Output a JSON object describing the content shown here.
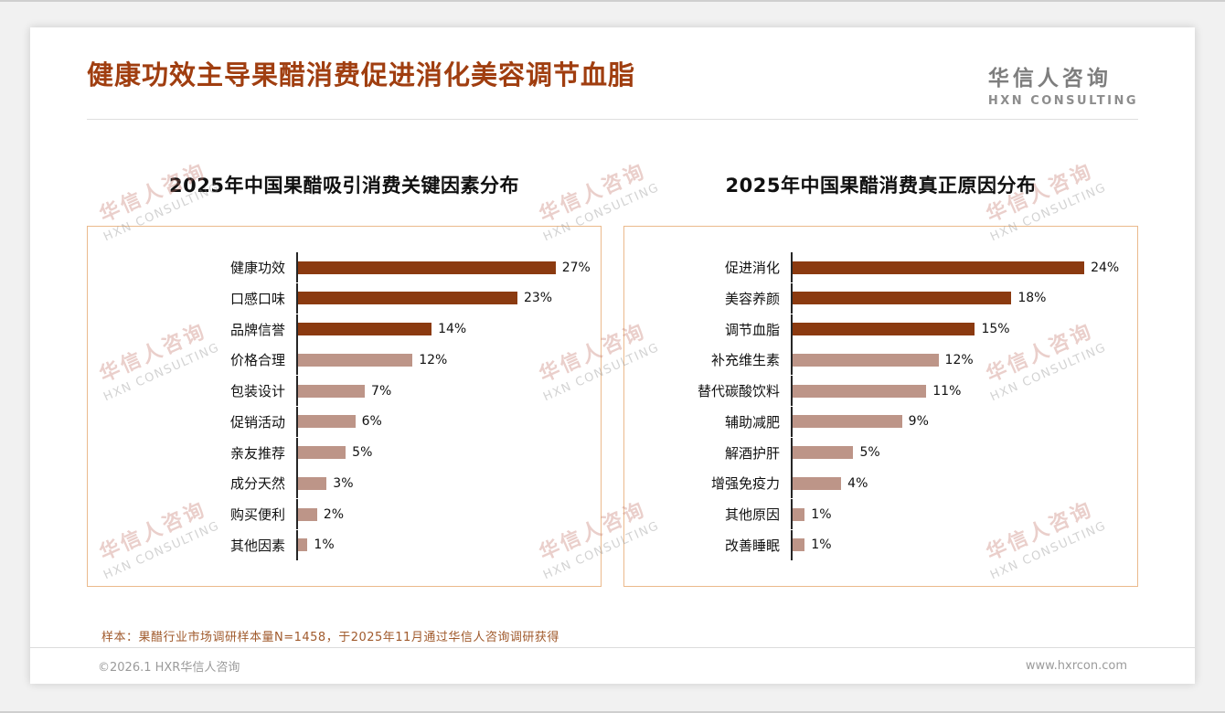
{
  "page": {
    "title": "健康功效主导果醋消费促进消化美容调节血脂",
    "logo": {
      "name": "华信人咨询",
      "sub": "HXN CONSULTING"
    },
    "watermark": {
      "line1": "华信人咨询",
      "line2": "HXN CONSULTING"
    },
    "note": "样本：果醋行业市场调研样本量N=1458，于2025年11月通过华信人咨询调研获得",
    "footer": {
      "left": "©2026.1 HXR华信人咨询",
      "right": "www.hxrcon.com"
    }
  },
  "colors": {
    "title": "#A03E10",
    "bar_dark": "#8B3A10",
    "bar_light": "#BD9588",
    "chart_border": "#EBBA8C",
    "note": "#A05A2C"
  },
  "chart_data": [
    {
      "type": "bar",
      "orientation": "horizontal",
      "title": "2025年中国果醋吸引消费关键因素分布",
      "categories": [
        "健康功效",
        "口感口味",
        "品牌信誉",
        "价格合理",
        "包装设计",
        "促销活动",
        "亲友推荐",
        "成分天然",
        "购买便利",
        "其他因素"
      ],
      "values": [
        27,
        23,
        14,
        12,
        7,
        6,
        5,
        3,
        2,
        1
      ],
      "unit": "%",
      "xlim": [
        0,
        30
      ],
      "highlight_count": 3,
      "grid": false,
      "legend": "none"
    },
    {
      "type": "bar",
      "orientation": "horizontal",
      "title": "2025年中国果醋消费真正原因分布",
      "categories": [
        "促进消化",
        "美容养颜",
        "调节血脂",
        "补充维生素",
        "替代碳酸饮料",
        "辅助减肥",
        "解酒护肝",
        "增强免疫力",
        "其他原因",
        "改善睡眠"
      ],
      "values": [
        24,
        18,
        15,
        12,
        11,
        9,
        5,
        4,
        1,
        1
      ],
      "unit": "%",
      "xlim": [
        0,
        27
      ],
      "highlight_count": 3,
      "grid": false,
      "legend": "none"
    }
  ]
}
